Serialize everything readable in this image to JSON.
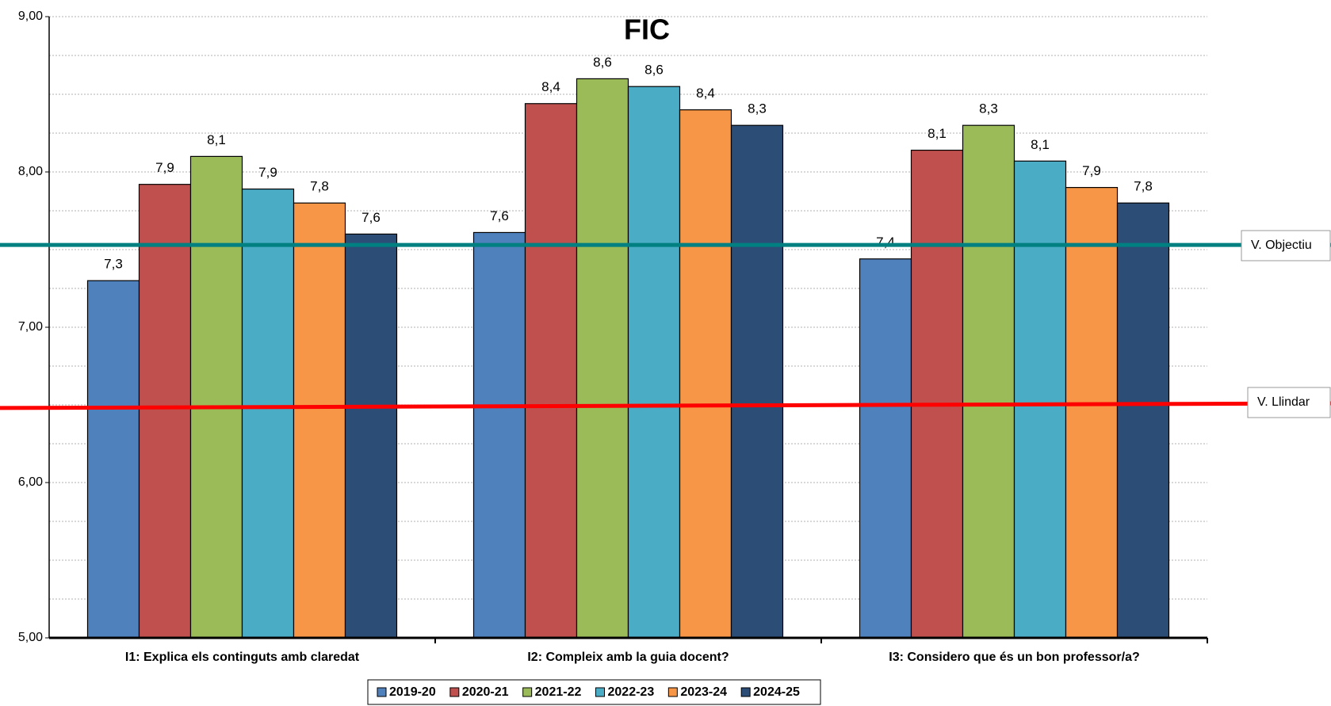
{
  "chart_data": {
    "type": "bar",
    "title": "FIC",
    "categories": [
      "I1: Explica els continguts amb claredat",
      "I2: Compleix amb la guia docent?",
      "I3: Considero que és un bon professor/a?"
    ],
    "series": [
      {
        "name": "2019-20",
        "color": "#4F81BD",
        "values": [
          7.3,
          7.61,
          7.44
        ],
        "value_labels": [
          "7,3",
          "7,6",
          "7,4"
        ]
      },
      {
        "name": "2020-21",
        "color": "#C0504D",
        "values": [
          7.92,
          8.44,
          8.14
        ],
        "value_labels": [
          "7,9",
          "8,4",
          "8,1"
        ]
      },
      {
        "name": "2021-22",
        "color": "#9BBB59",
        "values": [
          8.1,
          8.6,
          8.3
        ],
        "value_labels": [
          "8,1",
          "8,6",
          "8,3"
        ]
      },
      {
        "name": "2022-23",
        "color": "#4BACC6",
        "values": [
          7.89,
          8.55,
          8.07
        ],
        "value_labels": [
          "7,9",
          "8,6",
          "8,1"
        ]
      },
      {
        "name": "2023-24",
        "color": "#F79646",
        "values": [
          7.8,
          8.4,
          7.9
        ],
        "value_labels": [
          "7,8",
          "8,4",
          "7,9"
        ]
      },
      {
        "name": "2024-25",
        "color": "#2C4D75",
        "values": [
          7.6,
          8.3,
          7.8
        ],
        "value_labels": [
          "7,6",
          "8,3",
          "7,8"
        ]
      }
    ],
    "ylim": [
      5,
      9
    ],
    "yticks": [
      {
        "value": 5,
        "label": "5,00"
      },
      {
        "value": 6,
        "label": "6,00"
      },
      {
        "value": 7,
        "label": "7,00"
      },
      {
        "value": 8,
        "label": "8,00"
      },
      {
        "value": 9,
        "label": "9,00"
      }
    ],
    "minor_yticks": [
      5.25,
      5.5,
      5.75,
      6.25,
      6.5,
      6.75,
      7.25,
      7.5,
      7.75,
      8.25,
      8.5,
      8.75
    ],
    "grid": true,
    "reference_lines": [
      {
        "name": "V. Objectiu",
        "color": "#008080",
        "values": [
          7.53,
          7.53
        ]
      },
      {
        "name": "V. Llindar",
        "color": "#FF0000",
        "values": [
          6.48,
          6.51
        ]
      }
    ],
    "legend": "bottom"
  }
}
